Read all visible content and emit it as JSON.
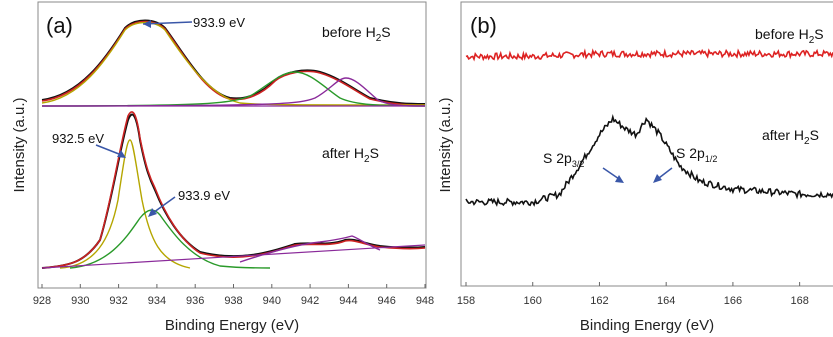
{
  "chart_data": [
    {
      "type": "line",
      "panel_label": "(a)",
      "xlabel": "Binding Energy (eV)",
      "ylabel": "Intensity (a.u.)",
      "xlim": [
        928,
        948
      ],
      "x_ticks": [
        "928",
        "930",
        "932",
        "934",
        "936",
        "938",
        "940",
        "942",
        "944",
        "946",
        "948"
      ],
      "annotations": [
        {
          "text": "before H",
          "sub": "2",
          "tail": "S"
        },
        {
          "text": "after H",
          "sub": "2",
          "tail": "S"
        }
      ],
      "peak_labels": [
        "933.9 eV",
        "932.5 eV",
        "933.9 eV"
      ],
      "series": [
        {
          "color": "#111111",
          "points": [
            [
              928.2,
              0.3
            ],
            [
              930,
              0.32
            ],
            [
              931,
              0.4
            ],
            [
              932,
              0.62
            ],
            [
              932.6,
              0.78
            ],
            [
              933.0,
              0.72
            ],
            [
              933.5,
              0.62
            ],
            [
              934,
              0.55
            ],
            [
              935,
              0.38
            ],
            [
              936,
              0.3
            ],
            [
              938,
              0.28
            ],
            [
              940,
              0.3
            ],
            [
              942,
              0.33
            ],
            [
              943.5,
              0.32
            ],
            [
              944.3,
              0.36
            ],
            [
              945,
              0.33
            ],
            [
              946,
              0.32
            ],
            [
              947.5,
              0.33
            ]
          ]
        },
        {
          "color": "#cc2222",
          "points": [
            [
              928.2,
              0.3
            ],
            [
              930,
              0.31
            ],
            [
              931,
              0.4
            ],
            [
              932,
              0.62
            ],
            [
              932.6,
              0.78
            ],
            [
              933.2,
              0.7
            ],
            [
              934,
              0.56
            ],
            [
              935,
              0.38
            ],
            [
              936,
              0.3
            ],
            [
              938,
              0.28
            ],
            [
              940,
              0.3
            ],
            [
              942,
              0.33
            ],
            [
              944.3,
              0.35
            ],
            [
              946,
              0.32
            ],
            [
              947.5,
              0.33
            ]
          ]
        },
        {
          "color": "#b5a600",
          "points": [
            [
              930.5,
              0.3
            ],
            [
              931.5,
              0.38
            ],
            [
              932.2,
              0.6
            ],
            [
              932.5,
              0.71
            ],
            [
              932.8,
              0.6
            ],
            [
              933.5,
              0.38
            ],
            [
              934.5,
              0.3
            ]
          ]
        },
        {
          "color": "#2a9a2a",
          "points": [
            [
              930.5,
              0.3
            ],
            [
              932,
              0.36
            ],
            [
              933,
              0.48
            ],
            [
              933.9,
              0.54
            ],
            [
              934.8,
              0.48
            ],
            [
              936,
              0.36
            ],
            [
              937.5,
              0.3
            ]
          ]
        },
        {
          "color": "#8a2a9a",
          "points": [
            [
              928,
              0.3
            ],
            [
              948,
              0.34
            ]
          ]
        }
      ]
    },
    {
      "type": "line",
      "panel_label": "(b)",
      "xlabel": "Binding Energy (eV)",
      "ylabel": "Intensity (a.u.)",
      "xlim": [
        158,
        169
      ],
      "x_ticks": [
        "158",
        "160",
        "162",
        "164",
        "166",
        "168"
      ],
      "annotations": [
        {
          "text": "before H",
          "sub": "2",
          "tail": "S"
        },
        {
          "text": "after H",
          "sub": "2",
          "tail": "S"
        }
      ],
      "peak_labels": [
        {
          "text": "S 2p",
          "sub": "3/2"
        },
        {
          "text": "S 2p",
          "sub": "1/2"
        }
      ],
      "series": [
        {
          "color": "#dd2222",
          "points": [
            [
              158,
              0.86
            ],
            [
              160,
              0.86
            ],
            [
              162,
              0.87
            ],
            [
              164,
              0.87
            ],
            [
              166,
              0.87
            ],
            [
              169,
              0.87
            ]
          ]
        },
        {
          "color": "#111111",
          "points": [
            [
              158,
              0.3
            ],
            [
              159,
              0.3
            ],
            [
              160,
              0.3
            ],
            [
              160.8,
              0.33
            ],
            [
              161.4,
              0.44
            ],
            [
              162,
              0.56
            ],
            [
              162.4,
              0.62
            ],
            [
              162.8,
              0.58
            ],
            [
              163.1,
              0.56
            ],
            [
              163.4,
              0.62
            ],
            [
              163.8,
              0.56
            ],
            [
              164.4,
              0.44
            ],
            [
              165,
              0.38
            ],
            [
              166,
              0.35
            ],
            [
              167,
              0.34
            ],
            [
              168,
              0.33
            ],
            [
              169,
              0.33
            ]
          ]
        }
      ]
    }
  ]
}
